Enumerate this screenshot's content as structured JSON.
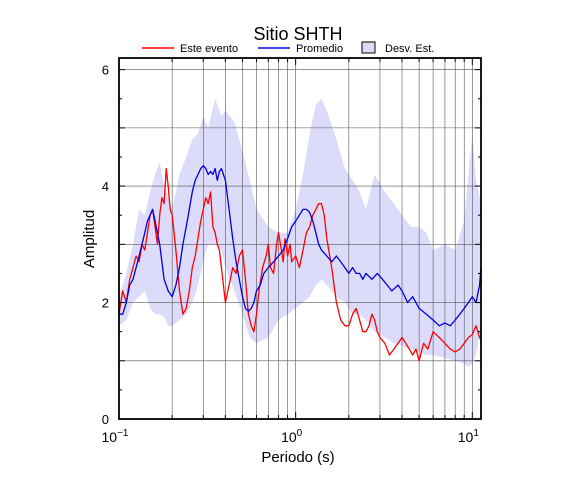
{
  "chart_data": {
    "type": "line",
    "title": "Sitio SHTH",
    "xlabel": "Periodo (s)",
    "ylabel": "Amplitud",
    "x_scale": "log",
    "xlim": [
      0.1,
      11.2
    ],
    "ylim": [
      0,
      6.2
    ],
    "grid": true,
    "legend_position": "top",
    "x_tick_labels": [
      {
        "base": "10",
        "exp": "−1"
      },
      {
        "base": "10",
        "exp": "0"
      },
      {
        "base": "10",
        "exp": "1"
      }
    ],
    "x_tick_values": [
      0.1,
      1,
      10
    ],
    "y_ticks": [
      0,
      2,
      4,
      6
    ],
    "legend": [
      {
        "label": "Este evento",
        "kind": "line",
        "color": "#ff0000"
      },
      {
        "label": "Promedio",
        "kind": "line",
        "color": "#0000dd"
      },
      {
        "label": "Desv. Est.",
        "kind": "box",
        "color": "#dcdcfa"
      }
    ],
    "band": {
      "name": "Desv. Est.",
      "color": "#dcdcfa",
      "x": [
        0.1,
        0.11,
        0.12,
        0.13,
        0.14,
        0.15,
        0.16,
        0.17,
        0.18,
        0.19,
        0.2,
        0.22,
        0.24,
        0.26,
        0.28,
        0.3,
        0.32,
        0.35,
        0.38,
        0.4,
        0.45,
        0.5,
        0.55,
        0.6,
        0.7,
        0.8,
        0.9,
        1.0,
        1.1,
        1.2,
        1.3,
        1.4,
        1.5,
        1.7,
        1.9,
        2.1,
        2.3,
        2.5,
        2.8,
        3.2,
        3.6,
        4.0,
        4.5,
        5.0,
        5.5,
        6.0,
        7.0,
        8.0,
        9.0,
        9.5,
        10.0,
        10.5,
        11.2
      ],
      "upper": [
        2.1,
        2.5,
        3.0,
        3.6,
        3.5,
        3.9,
        4.2,
        4.4,
        4.0,
        3.8,
        3.6,
        4.2,
        4.5,
        4.8,
        4.9,
        5.2,
        5.0,
        5.5,
        5.2,
        5.3,
        5.1,
        4.6,
        4.1,
        3.6,
        3.3,
        3.2,
        3.2,
        3.6,
        4.2,
        4.9,
        5.4,
        5.5,
        5.3,
        4.8,
        4.3,
        4.1,
        3.9,
        3.6,
        4.2,
        3.9,
        3.7,
        3.5,
        3.3,
        3.3,
        3.2,
        2.9,
        3.0,
        2.9,
        3.4,
        4.2,
        4.9,
        4.1,
        3.7
      ],
      "lower": [
        1.6,
        1.7,
        2.0,
        2.1,
        2.2,
        1.9,
        1.8,
        1.8,
        1.75,
        1.6,
        1.6,
        1.7,
        1.8,
        2.0,
        2.3,
        2.7,
        3.0,
        3.0,
        2.9,
        2.6,
        2.2,
        1.8,
        1.4,
        1.3,
        1.4,
        1.7,
        1.8,
        1.9,
        2.0,
        2.1,
        2.3,
        2.4,
        2.3,
        2.1,
        2.0,
        1.8,
        1.8,
        1.7,
        1.5,
        1.4,
        1.3,
        1.25,
        1.2,
        1.15,
        1.1,
        1.1,
        1.05,
        1.0,
        0.95,
        0.9,
        0.95,
        1.1,
        1.6
      ]
    },
    "series": [
      {
        "name": "Este evento",
        "color": "#ff0000",
        "x": [
          0.1,
          0.105,
          0.11,
          0.115,
          0.12,
          0.125,
          0.13,
          0.135,
          0.14,
          0.145,
          0.15,
          0.155,
          0.16,
          0.165,
          0.17,
          0.175,
          0.18,
          0.185,
          0.19,
          0.195,
          0.2,
          0.21,
          0.22,
          0.23,
          0.24,
          0.25,
          0.26,
          0.27,
          0.28,
          0.29,
          0.3,
          0.31,
          0.32,
          0.33,
          0.34,
          0.35,
          0.36,
          0.37,
          0.38,
          0.39,
          0.4,
          0.42,
          0.44,
          0.46,
          0.48,
          0.5,
          0.52,
          0.54,
          0.56,
          0.58,
          0.6,
          0.62,
          0.65,
          0.68,
          0.7,
          0.72,
          0.75,
          0.78,
          0.8,
          0.83,
          0.85,
          0.87,
          0.9,
          0.93,
          0.95,
          1.0,
          1.05,
          1.1,
          1.15,
          1.2,
          1.25,
          1.3,
          1.35,
          1.4,
          1.45,
          1.5,
          1.6,
          1.7,
          1.8,
          1.9,
          2.0,
          2.1,
          2.2,
          2.3,
          2.4,
          2.5,
          2.6,
          2.7,
          2.8,
          2.9,
          3.0,
          3.2,
          3.4,
          3.6,
          3.8,
          4.0,
          4.2,
          4.4,
          4.6,
          4.8,
          5.0,
          5.3,
          5.6,
          6.0,
          6.5,
          7.0,
          7.5,
          8.0,
          8.5,
          9.0,
          9.5,
          10.0,
          10.5,
          11.0,
          11.2
        ],
        "values": [
          1.8,
          2.2,
          2.0,
          2.4,
          2.6,
          2.8,
          2.7,
          3.0,
          2.9,
          3.2,
          3.5,
          3.6,
          3.3,
          3.0,
          3.5,
          3.8,
          3.7,
          4.3,
          4.0,
          3.6,
          3.5,
          2.9,
          2.2,
          1.8,
          1.9,
          2.2,
          2.6,
          2.8,
          3.1,
          3.4,
          3.6,
          3.8,
          3.7,
          3.9,
          3.3,
          3.2,
          3.0,
          2.9,
          2.6,
          2.3,
          2.0,
          2.3,
          2.6,
          2.5,
          2.8,
          2.9,
          2.4,
          1.8,
          1.6,
          1.5,
          1.8,
          2.2,
          2.6,
          2.8,
          3.0,
          2.6,
          2.5,
          3.0,
          3.2,
          2.9,
          2.7,
          3.1,
          2.8,
          3.0,
          2.7,
          2.8,
          2.6,
          2.9,
          3.2,
          3.3,
          3.5,
          3.6,
          3.7,
          3.7,
          3.5,
          3.1,
          2.6,
          2.0,
          1.7,
          1.6,
          1.6,
          1.8,
          1.9,
          1.7,
          1.5,
          1.5,
          1.6,
          1.8,
          1.7,
          1.5,
          1.4,
          1.3,
          1.1,
          1.2,
          1.3,
          1.4,
          1.3,
          1.2,
          1.1,
          1.2,
          1.0,
          1.3,
          1.2,
          1.5,
          1.4,
          1.3,
          1.2,
          1.15,
          1.2,
          1.3,
          1.4,
          1.45,
          1.6,
          1.4,
          1.35
        ]
      },
      {
        "name": "Promedio",
        "color": "#0000dd",
        "x": [
          0.1,
          0.105,
          0.11,
          0.115,
          0.12,
          0.125,
          0.13,
          0.135,
          0.14,
          0.145,
          0.15,
          0.155,
          0.16,
          0.165,
          0.17,
          0.175,
          0.18,
          0.19,
          0.2,
          0.21,
          0.22,
          0.23,
          0.24,
          0.25,
          0.26,
          0.27,
          0.28,
          0.29,
          0.3,
          0.31,
          0.32,
          0.33,
          0.34,
          0.35,
          0.36,
          0.37,
          0.38,
          0.39,
          0.4,
          0.42,
          0.44,
          0.46,
          0.48,
          0.5,
          0.52,
          0.54,
          0.56,
          0.58,
          0.6,
          0.63,
          0.66,
          0.7,
          0.75,
          0.8,
          0.85,
          0.9,
          0.95,
          1.0,
          1.05,
          1.1,
          1.15,
          1.2,
          1.25,
          1.3,
          1.35,
          1.4,
          1.5,
          1.6,
          1.7,
          1.8,
          1.9,
          2.0,
          2.1,
          2.2,
          2.3,
          2.4,
          2.5,
          2.7,
          2.9,
          3.1,
          3.3,
          3.5,
          3.8,
          4.0,
          4.3,
          4.6,
          5.0,
          5.5,
          6.0,
          6.5,
          7.0,
          7.5,
          8.0,
          8.5,
          9.0,
          9.5,
          10.0,
          10.5,
          11.0,
          11.2
        ],
        "values": [
          1.8,
          1.8,
          2.0,
          2.3,
          2.4,
          2.6,
          2.8,
          3.0,
          3.2,
          3.4,
          3.5,
          3.6,
          3.4,
          3.2,
          3.0,
          2.7,
          2.4,
          2.2,
          2.1,
          2.3,
          2.6,
          3.0,
          3.3,
          3.6,
          3.9,
          4.1,
          4.2,
          4.3,
          4.35,
          4.3,
          4.2,
          4.25,
          4.2,
          4.3,
          4.1,
          4.25,
          4.3,
          4.2,
          4.1,
          3.6,
          3.1,
          2.7,
          2.4,
          2.1,
          1.9,
          1.85,
          1.9,
          2.0,
          2.2,
          2.3,
          2.5,
          2.6,
          2.7,
          2.8,
          2.9,
          3.1,
          3.3,
          3.4,
          3.5,
          3.6,
          3.6,
          3.55,
          3.4,
          3.2,
          3.0,
          2.9,
          2.8,
          2.7,
          2.8,
          2.7,
          2.6,
          2.5,
          2.6,
          2.5,
          2.5,
          2.4,
          2.5,
          2.4,
          2.5,
          2.4,
          2.3,
          2.2,
          2.3,
          2.2,
          2.0,
          2.1,
          1.9,
          1.8,
          1.7,
          1.6,
          1.65,
          1.6,
          1.7,
          1.8,
          1.9,
          2.0,
          2.1,
          2.0,
          2.3,
          2.6
        ]
      }
    ]
  }
}
